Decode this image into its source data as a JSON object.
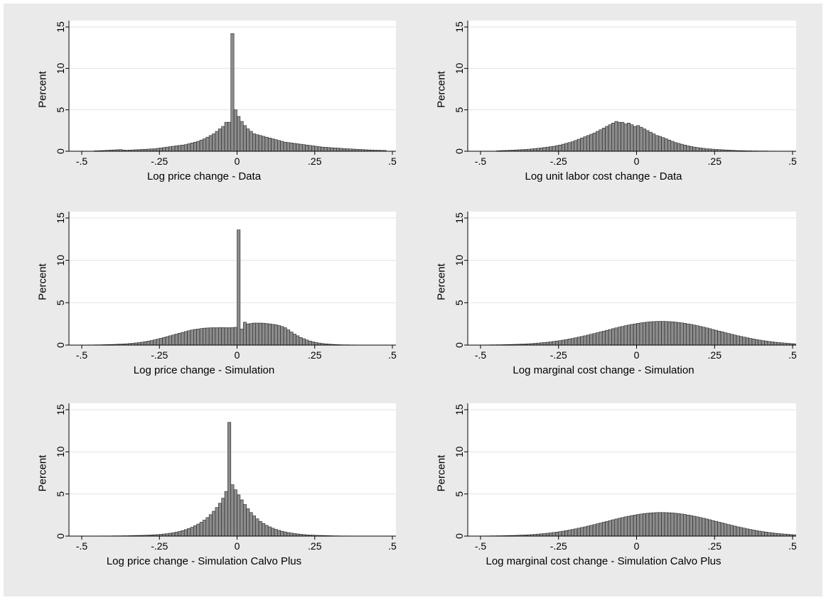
{
  "chart_data": [
    {
      "type": "bar",
      "panel": "top-left",
      "xlabel": "Log price change - Data",
      "ylabel": "Percent",
      "xlim": [
        -0.5,
        0.5
      ],
      "ylim": [
        0,
        15
      ],
      "xticks": [
        "-.5",
        "-.25",
        "0",
        ".25",
        ".5"
      ],
      "yticks": [
        "0",
        "5",
        "10",
        "15"
      ],
      "grid": true,
      "bin_width": 0.01,
      "bin_start": -0.46,
      "values": [
        0.05,
        0.06,
        0.08,
        0.1,
        0.12,
        0.14,
        0.16,
        0.18,
        0.2,
        0.15,
        0.12,
        0.14,
        0.16,
        0.18,
        0.2,
        0.22,
        0.24,
        0.26,
        0.28,
        0.3,
        0.35,
        0.4,
        0.45,
        0.5,
        0.55,
        0.6,
        0.65,
        0.7,
        0.75,
        0.8,
        0.9,
        1.0,
        1.1,
        1.2,
        1.35,
        1.5,
        1.7,
        1.9,
        2.1,
        2.4,
        2.7,
        3.0,
        3.5,
        3.5,
        14.2,
        5.0,
        4.2,
        3.6,
        3.1,
        2.7,
        2.4,
        2.1,
        2.0,
        1.9,
        1.8,
        1.7,
        1.6,
        1.5,
        1.4,
        1.3,
        1.2,
        1.1,
        1.05,
        1.0,
        0.95,
        0.9,
        0.85,
        0.8,
        0.75,
        0.7,
        0.65,
        0.6,
        0.55,
        0.5,
        0.48,
        0.45,
        0.42,
        0.4,
        0.38,
        0.35,
        0.32,
        0.3,
        0.28,
        0.26,
        0.24,
        0.22,
        0.2,
        0.18,
        0.16,
        0.15,
        0.13,
        0.12,
        0.11,
        0.1
      ]
    },
    {
      "type": "bar",
      "panel": "top-right",
      "xlabel": "Log unit labor cost change - Data",
      "ylabel": "Percent",
      "xlim": [
        -0.5,
        0.5
      ],
      "ylim": [
        0,
        15
      ],
      "xticks": [
        "-.5",
        "-.25",
        "0",
        ".25",
        ".5"
      ],
      "yticks": [
        "0",
        "5",
        "10",
        "15"
      ],
      "grid": true,
      "bin_width": 0.01,
      "bin_start": -0.45,
      "values": [
        0.05,
        0.07,
        0.09,
        0.1,
        0.12,
        0.14,
        0.16,
        0.18,
        0.2,
        0.22,
        0.25,
        0.28,
        0.32,
        0.36,
        0.4,
        0.45,
        0.5,
        0.55,
        0.6,
        0.68,
        0.75,
        0.85,
        0.95,
        1.05,
        1.15,
        1.3,
        1.45,
        1.6,
        1.75,
        1.9,
        2.05,
        2.2,
        2.4,
        2.6,
        2.8,
        3.0,
        3.2,
        3.4,
        3.6,
        3.5,
        3.5,
        3.3,
        3.4,
        3.2,
        3.0,
        3.1,
        2.9,
        2.7,
        2.5,
        2.3,
        2.1,
        1.9,
        1.8,
        1.65,
        1.5,
        1.35,
        1.2,
        1.05,
        0.95,
        0.85,
        0.75,
        0.65,
        0.58,
        0.5,
        0.45,
        0.4,
        0.35,
        0.3,
        0.28,
        0.25,
        0.22,
        0.2,
        0.18,
        0.16,
        0.14,
        0.12,
        0.1,
        0.08,
        0.07,
        0.06,
        0.05,
        0.05,
        0.04,
        0.04,
        0.03,
        0.03,
        0.03,
        0.02,
        0.02,
        0.02
      ]
    },
    {
      "type": "bar",
      "panel": "middle-left",
      "xlabel": "Log price change - Simulation",
      "ylabel": "Percent",
      "xlim": [
        -0.5,
        0.5
      ],
      "ylim": [
        0,
        15
      ],
      "xticks": [
        "-.5",
        "-.25",
        "0",
        ".25",
        ".5"
      ],
      "yticks": [
        "0",
        "5",
        "10",
        "15"
      ],
      "grid": true,
      "bin_width": 0.01,
      "bin_start": -0.49,
      "values": [
        0.01,
        0.02,
        0.02,
        0.03,
        0.03,
        0.04,
        0.05,
        0.06,
        0.07,
        0.08,
        0.1,
        0.12,
        0.14,
        0.16,
        0.19,
        0.22,
        0.26,
        0.3,
        0.35,
        0.41,
        0.47,
        0.54,
        0.62,
        0.71,
        0.8,
        0.9,
        1.0,
        1.1,
        1.2,
        1.3,
        1.4,
        1.5,
        1.6,
        1.7,
        1.78,
        1.85,
        1.9,
        1.95,
        2.0,
        2.02,
        2.04,
        2.05,
        2.05,
        2.06,
        2.06,
        2.05,
        2.05,
        2.06,
        2.1,
        13.6,
        1.9,
        2.7,
        2.5,
        2.55,
        2.6,
        2.6,
        2.6,
        2.58,
        2.55,
        2.5,
        2.45,
        2.4,
        2.3,
        2.2,
        2.05,
        1.8,
        1.55,
        1.3,
        1.1,
        0.9,
        0.75,
        0.6,
        0.48,
        0.38,
        0.3,
        0.24,
        0.19,
        0.15,
        0.12,
        0.09,
        0.07,
        0.05,
        0.04,
        0.03,
        0.03,
        0.02,
        0.02,
        0.01,
        0.01,
        0.01,
        0.01,
        0.01,
        0.01,
        0.01,
        0.01,
        0.01,
        0.01,
        0.01,
        0.01
      ]
    },
    {
      "type": "bar",
      "panel": "middle-right",
      "xlabel": "Log marginal cost change - Simulation",
      "ylabel": "Percent",
      "xlim": [
        -0.5,
        0.5
      ],
      "ylim": [
        0,
        15
      ],
      "xticks": [
        "-.5",
        "-.25",
        "0",
        ".25",
        ".5"
      ],
      "yticks": [
        "0",
        "5",
        "10",
        "15"
      ],
      "grid": true,
      "bin_width": 0.01,
      "bin_start": -0.49,
      "values": [
        0.02,
        0.02,
        0.03,
        0.03,
        0.04,
        0.04,
        0.05,
        0.06,
        0.07,
        0.08,
        0.09,
        0.11,
        0.12,
        0.14,
        0.16,
        0.18,
        0.21,
        0.24,
        0.27,
        0.3,
        0.34,
        0.38,
        0.43,
        0.48,
        0.53,
        0.59,
        0.65,
        0.72,
        0.79,
        0.86,
        0.94,
        1.02,
        1.1,
        1.19,
        1.28,
        1.37,
        1.46,
        1.56,
        1.65,
        1.75,
        1.84,
        1.94,
        2.03,
        2.12,
        2.2,
        2.29,
        2.36,
        2.44,
        2.5,
        2.57,
        2.62,
        2.67,
        2.71,
        2.75,
        2.77,
        2.79,
        2.8,
        2.8,
        2.79,
        2.77,
        2.75,
        2.71,
        2.67,
        2.62,
        2.57,
        2.5,
        2.44,
        2.36,
        2.29,
        2.2,
        2.12,
        2.03,
        1.94,
        1.84,
        1.75,
        1.65,
        1.56,
        1.46,
        1.37,
        1.28,
        1.19,
        1.1,
        1.02,
        0.94,
        0.86,
        0.79,
        0.72,
        0.65,
        0.59,
        0.53,
        0.48,
        0.43,
        0.38,
        0.34,
        0.3,
        0.27,
        0.24,
        0.21,
        0.18,
        0.16
      ]
    },
    {
      "type": "bar",
      "panel": "bottom-left",
      "xlabel": "Log price change - Simulation Calvo Plus",
      "ylabel": "Percent",
      "xlim": [
        -0.5,
        0.5
      ],
      "ylim": [
        0,
        15
      ],
      "xticks": [
        "-.5",
        "-.25",
        "0",
        ".25",
        ".5"
      ],
      "yticks": [
        "0",
        "5",
        "10",
        "15"
      ],
      "grid": true,
      "bin_width": 0.01,
      "bin_start": -0.49,
      "values": [
        0.01,
        0.01,
        0.01,
        0.01,
        0.01,
        0.02,
        0.02,
        0.02,
        0.02,
        0.03,
        0.03,
        0.03,
        0.04,
        0.04,
        0.05,
        0.06,
        0.07,
        0.08,
        0.09,
        0.1,
        0.12,
        0.14,
        0.16,
        0.18,
        0.21,
        0.25,
        0.29,
        0.34,
        0.4,
        0.47,
        0.55,
        0.65,
        0.77,
        0.9,
        1.05,
        1.23,
        1.43,
        1.65,
        1.9,
        2.2,
        2.55,
        2.95,
        3.4,
        3.9,
        4.5,
        5.3,
        13.5,
        6.1,
        5.5,
        4.9,
        4.3,
        3.75,
        3.25,
        2.8,
        2.4,
        2.05,
        1.75,
        1.5,
        1.28,
        1.1,
        0.94,
        0.8,
        0.68,
        0.58,
        0.5,
        0.42,
        0.36,
        0.3,
        0.26,
        0.22,
        0.18,
        0.15,
        0.13,
        0.11,
        0.09,
        0.08,
        0.07,
        0.06,
        0.05,
        0.04,
        0.03,
        0.03,
        0.02,
        0.02,
        0.02,
        0.01,
        0.01,
        0.01,
        0.01,
        0.01,
        0.01,
        0.01,
        0.01,
        0.01,
        0.01,
        0.01,
        0.01,
        0.01,
        0.01
      ]
    },
    {
      "type": "bar",
      "panel": "bottom-right",
      "xlabel": "Log marginal cost change - Simulation Calvo Plus",
      "ylabel": "Percent",
      "xlim": [
        -0.5,
        0.5
      ],
      "ylim": [
        0,
        15
      ],
      "xticks": [
        "-.5",
        "-.25",
        "0",
        ".25",
        ".5"
      ],
      "yticks": [
        "0",
        "5",
        "10",
        "15"
      ],
      "grid": true,
      "bin_width": 0.01,
      "bin_start": -0.49,
      "values": [
        0.02,
        0.02,
        0.03,
        0.03,
        0.04,
        0.04,
        0.05,
        0.06,
        0.07,
        0.08,
        0.09,
        0.11,
        0.12,
        0.14,
        0.16,
        0.18,
        0.21,
        0.24,
        0.27,
        0.3,
        0.34,
        0.38,
        0.43,
        0.48,
        0.53,
        0.59,
        0.65,
        0.72,
        0.79,
        0.86,
        0.94,
        1.02,
        1.1,
        1.19,
        1.28,
        1.37,
        1.46,
        1.56,
        1.65,
        1.75,
        1.84,
        1.94,
        2.03,
        2.12,
        2.2,
        2.29,
        2.36,
        2.44,
        2.5,
        2.57,
        2.62,
        2.67,
        2.71,
        2.75,
        2.77,
        2.79,
        2.8,
        2.8,
        2.79,
        2.77,
        2.75,
        2.71,
        2.67,
        2.62,
        2.57,
        2.5,
        2.44,
        2.36,
        2.29,
        2.2,
        2.12,
        2.03,
        1.94,
        1.84,
        1.75,
        1.65,
        1.56,
        1.46,
        1.37,
        1.28,
        1.19,
        1.1,
        1.02,
        0.94,
        0.86,
        0.79,
        0.72,
        0.65,
        0.59,
        0.53,
        0.48,
        0.43,
        0.38,
        0.34,
        0.3,
        0.27,
        0.24,
        0.21,
        0.18,
        0.16
      ]
    }
  ]
}
